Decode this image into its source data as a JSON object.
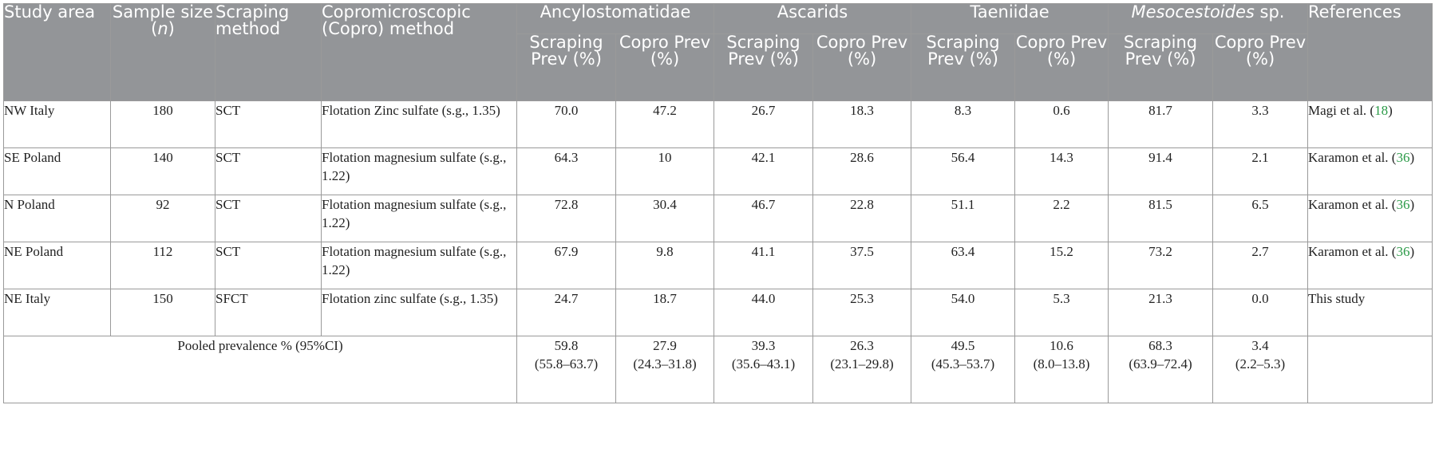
{
  "header": {
    "study_area": "Study area",
    "sample_size_prefix": "Sample size (",
    "sample_size_n": "n",
    "sample_size_suffix": ")",
    "scraping_method": "Scraping method",
    "copro_method": "Copromicroscopic (Copro) method",
    "groups": [
      {
        "label": "Ancylostomatidae",
        "italic": ""
      },
      {
        "label": "Ascarids",
        "italic": ""
      },
      {
        "label": "Taeniidae",
        "italic": ""
      },
      {
        "italic": "Mesocestoides",
        "label": " sp."
      }
    ],
    "references": "References",
    "sub_scraping": "Scraping Prev (%)",
    "sub_copro": "Copro Prev (%)"
  },
  "rows": [
    {
      "area": "NW Italy",
      "n": "180",
      "scraping": "SCT",
      "method": "Flotation Zinc sulfate (s.g., 1.35)",
      "values": [
        "70.0",
        "47.2",
        "26.7",
        "18.3",
        "8.3",
        "0.6",
        "81.7",
        "3.3"
      ],
      "ref_text": "Magi et al. (",
      "ref_num": "18",
      "ref_close": ")"
    },
    {
      "area": "SE Poland",
      "n": "140",
      "scraping": "SCT",
      "method": "Flotation magnesium sulfate (s.g., 1.22)",
      "values": [
        "64.3",
        "10",
        "42.1",
        "28.6",
        "56.4",
        "14.3",
        "91.4",
        "2.1"
      ],
      "ref_text": "Karamon et al. (",
      "ref_num": "36",
      "ref_close": ")"
    },
    {
      "area": "N Poland",
      "n": "92",
      "scraping": "SCT",
      "method": "Flotation magnesium sulfate (s.g., 1.22)",
      "values": [
        "72.8",
        "30.4",
        "46.7",
        "22.8",
        "51.1",
        "2.2",
        "81.5",
        "6.5"
      ],
      "ref_text": "Karamon et al. (",
      "ref_num": "36",
      "ref_close": ")"
    },
    {
      "area": "NE Poland",
      "n": "112",
      "scraping": "SCT",
      "method": "Flotation magnesium sulfate (s.g., 1.22)",
      "values": [
        "67.9",
        "9.8",
        "41.1",
        "37.5",
        "63.4",
        "15.2",
        "73.2",
        "2.7"
      ],
      "ref_text": "Karamon et al. (",
      "ref_num": "36",
      "ref_close": ")"
    },
    {
      "area": "NE Italy",
      "n": "150",
      "scraping": "SFCT",
      "method": "Flotation zinc sulfate (s.g., 1.35)",
      "values": [
        "24.7",
        "18.7",
        "44.0",
        "25.3",
        "54.0",
        "5.3",
        "21.3",
        "0.0"
      ],
      "ref_text": "This study",
      "ref_num": "",
      "ref_close": ""
    }
  ],
  "pooled": {
    "label": "Pooled prevalence % (95%CI)",
    "values": [
      {
        "v": "59.8",
        "ci": "(55.8–63.7)"
      },
      {
        "v": "27.9",
        "ci": "(24.3–31.8)"
      },
      {
        "v": "39.3",
        "ci": "(35.6–43.1)"
      },
      {
        "v": "26.3",
        "ci": "(23.1–29.8)"
      },
      {
        "v": "49.5",
        "ci": "(45.3–53.7)"
      },
      {
        "v": "10.6",
        "ci": "(8.0–13.8)"
      },
      {
        "v": "68.3",
        "ci": "(63.9–72.4)"
      },
      {
        "v": "3.4",
        "ci": "(2.2–5.3)"
      }
    ]
  },
  "colors": {
    "header_bg": "#939598",
    "header_text": "#ffffff",
    "ref_link": "#2a9a47",
    "border": "#9a9a9a"
  }
}
